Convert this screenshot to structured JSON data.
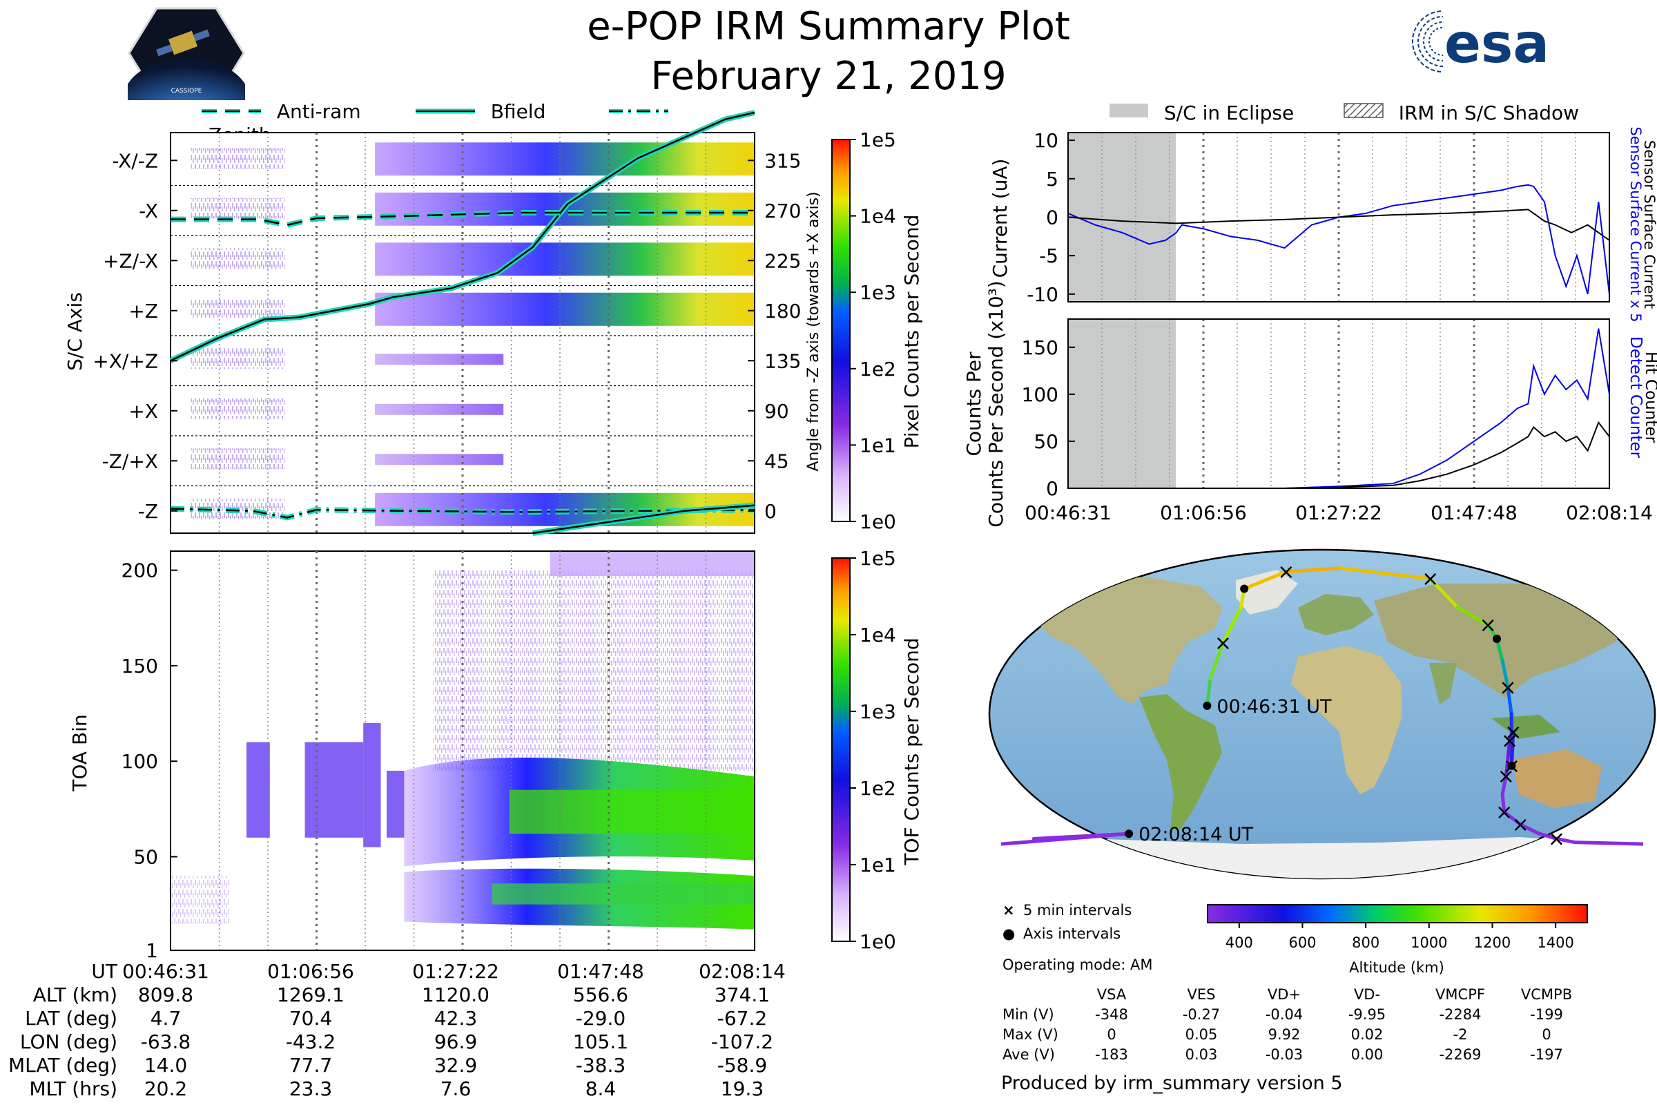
{
  "header": {
    "title": "e-POP IRM Summary Plot",
    "date": "February 21, 2019"
  },
  "logos": {
    "cassiope_text": "CASSIOPE",
    "esa_text": "esa"
  },
  "legend_top_left": {
    "items": [
      "Anti-ram",
      "Bfield",
      "Zenith"
    ]
  },
  "legend_top_right": {
    "items": [
      "S/C in Eclipse",
      "IRM in S/C Shadow"
    ]
  },
  "colors": {
    "trace_cyan": "#1ad6b8",
    "blue_line": "#0000ee",
    "eclipse_gray": "#c8cbca",
    "ocean": "#7fb2d9",
    "land": "#c9c096"
  },
  "time_axis": {
    "ticks": [
      "00:46:31",
      "01:06:56",
      "01:27:22",
      "01:47:48",
      "02:08:14"
    ]
  },
  "chart_data": [
    {
      "type": "heatmap",
      "name": "pixel_counts",
      "ylabel_left": "S/C Axis",
      "ylabel_right": "Angle from -Z axis (towards +X axis)",
      "y_categories": [
        "-X/-Z",
        "-X",
        "+Z/-X",
        "+Z",
        "+X/+Z",
        "+X",
        "-Z/+X",
        "-Z"
      ],
      "y_angles": [
        "315",
        "270",
        "225",
        "180",
        "135",
        "90",
        "45",
        "0"
      ],
      "colorbar_label": "Pixel Counts per Second",
      "colorbar_ticks": [
        "1e5",
        "1e4",
        "1e3",
        "1e2",
        "1e1",
        "1e0"
      ],
      "series": [
        {
          "name": "Bfield",
          "x_frac": [
            0,
            0.08,
            0.16,
            0.22,
            0.34,
            0.38,
            0.48,
            0.56,
            0.62,
            0.68,
            0.8,
            0.95,
            1.0
          ],
          "angle": [
            135,
            155,
            172,
            174,
            186,
            192,
            200,
            214,
            237,
            276,
            317,
            352,
            358
          ]
        },
        {
          "name": "Anti-ram",
          "x_frac": [
            0,
            0.15,
            0.2,
            0.25,
            0.4,
            0.6,
            1.0
          ],
          "angle": [
            262,
            262,
            257,
            263,
            265,
            268,
            268
          ]
        },
        {
          "name": "Zenith",
          "x_frac": [
            0,
            0.14,
            0.2,
            0.25,
            0.4,
            0.6,
            1.0
          ],
          "angle": [
            2,
            0,
            -6,
            1,
            0,
            -1,
            1
          ]
        }
      ]
    },
    {
      "type": "heatmap",
      "name": "tof_counts",
      "ylabel": "TOA Bin",
      "y_ticks": [
        "1",
        "50",
        "100",
        "150",
        "200"
      ],
      "ylim": [
        1,
        210
      ],
      "colorbar_label": "TOF Counts per Second",
      "colorbar_ticks": [
        "1e5",
        "1e4",
        "1e3",
        "1e2",
        "1e1",
        "1e0"
      ]
    },
    {
      "type": "line",
      "name": "current",
      "ylabel": "Current (uA)",
      "right_labels": [
        "Sensor Surface Current x 5",
        "Sensor Surface Current"
      ],
      "y_ticks": [
        "10",
        "5",
        "0",
        "-5",
        "-10"
      ],
      "ylim": [
        -11,
        11
      ],
      "series": [
        {
          "name": "Sensor Surface Current x 5",
          "x_frac": [
            0,
            0.05,
            0.1,
            0.15,
            0.18,
            0.2,
            0.21,
            0.25,
            0.3,
            0.35,
            0.4,
            0.45,
            0.5,
            0.55,
            0.6,
            0.65,
            0.7,
            0.75,
            0.8,
            0.83,
            0.85,
            0.86,
            0.88,
            0.9,
            0.92,
            0.94,
            0.96,
            0.98,
            1.0
          ],
          "values": [
            0.5,
            -1,
            -2,
            -3.5,
            -3,
            -2,
            -1,
            -1.5,
            -2.5,
            -3,
            -4,
            -1,
            0,
            0.5,
            1.5,
            2,
            2.5,
            3,
            3.5,
            4,
            4.2,
            4,
            2,
            -5,
            -9,
            -5,
            -10,
            2,
            -10
          ]
        },
        {
          "name": "Sensor Surface Current",
          "x_frac": [
            0,
            0.1,
            0.2,
            0.3,
            0.4,
            0.5,
            0.6,
            0.7,
            0.8,
            0.85,
            0.88,
            0.9,
            0.93,
            0.96,
            1.0
          ],
          "values": [
            0,
            -0.5,
            -0.8,
            -0.5,
            -0.3,
            0,
            0.3,
            0.5,
            0.8,
            1,
            -0.5,
            -1,
            -2,
            -1,
            -3
          ]
        }
      ]
    },
    {
      "type": "line",
      "name": "counts",
      "ylabel": "Counts Per Second (x10³)",
      "right_labels": [
        "Detect Counter",
        "Hit Counter"
      ],
      "y_ticks": [
        "150",
        "100",
        "50",
        "0"
      ],
      "ylim": [
        0,
        180
      ],
      "series": [
        {
          "name": "Detect Counter",
          "x_frac": [
            0,
            0.4,
            0.5,
            0.6,
            0.65,
            0.7,
            0.75,
            0.8,
            0.83,
            0.85,
            0.86,
            0.88,
            0.9,
            0.92,
            0.94,
            0.96,
            0.98,
            1.0
          ],
          "values": [
            0,
            0,
            2,
            5,
            15,
            30,
            50,
            70,
            85,
            90,
            130,
            100,
            120,
            105,
            115,
            95,
            170,
            100
          ]
        },
        {
          "name": "Hit Counter",
          "x_frac": [
            0,
            0.4,
            0.5,
            0.6,
            0.65,
            0.7,
            0.75,
            0.8,
            0.83,
            0.85,
            0.86,
            0.88,
            0.9,
            0.92,
            0.94,
            0.96,
            0.98,
            1.0
          ],
          "values": [
            0,
            0,
            1,
            3,
            8,
            15,
            25,
            38,
            48,
            55,
            65,
            55,
            60,
            50,
            55,
            40,
            70,
            55
          ]
        }
      ]
    },
    {
      "type": "scatter",
      "name": "orbit_map",
      "start_label": "00:46:31 UT",
      "end_label": "02:08:14 UT",
      "lon": [
        -63.8,
        -62,
        -55,
        -45,
        -43.2,
        -20,
        10,
        60,
        75,
        92,
        96.9,
        100,
        103,
        105,
        105.1,
        106,
        104,
        103,
        102,
        100,
        101,
        110,
        120,
        130,
        140,
        -160,
        -107.2
      ],
      "lat": [
        4.7,
        20,
        40,
        60,
        70.4,
        80,
        82,
        76,
        60,
        50,
        42.3,
        30,
        15,
        0,
        -29,
        -10,
        -15,
        -25,
        -35,
        -45,
        -55,
        -62,
        -67,
        -70,
        -72,
        -70,
        -67.2
      ]
    }
  ],
  "map_legend": {
    "five_min": "5 min intervals",
    "axis": "Axis intervals",
    "mode": "Operating mode: AM",
    "altitude_label": "Altitude (km)",
    "altitude_ticks": [
      "400",
      "600",
      "800",
      "1000",
      "1200",
      "1400"
    ]
  },
  "ephemeris": {
    "rows": [
      {
        "label": "UT",
        "values": [
          "00:46:31",
          "01:06:56",
          "01:27:22",
          "01:47:48",
          "02:08:14"
        ]
      },
      {
        "label": "ALT (km)",
        "values": [
          "809.8",
          "1269.1",
          "1120.0",
          "556.6",
          "374.1"
        ]
      },
      {
        "label": "LAT (deg)",
        "values": [
          "4.7",
          "70.4",
          "42.3",
          "-29.0",
          "-67.2"
        ]
      },
      {
        "label": "LON (deg)",
        "values": [
          "-63.8",
          "-43.2",
          "96.9",
          "105.1",
          "-107.2"
        ]
      },
      {
        "label": "MLAT (deg)",
        "values": [
          "14.0",
          "77.7",
          "32.9",
          "-38.3",
          "-58.9"
        ]
      },
      {
        "label": "MLT (hrs)",
        "values": [
          "20.2",
          "23.3",
          "7.6",
          "8.4",
          "19.3"
        ]
      }
    ]
  },
  "voltages": {
    "columns": [
      "VSA",
      "VES",
      "VD+",
      "VD-",
      "VMCPF",
      "VCMPB"
    ],
    "rows": [
      {
        "label": "Min (V)",
        "values": [
          "-348",
          "-0.27",
          "-0.04",
          "-9.95",
          "-2284",
          "-199"
        ]
      },
      {
        "label": "Max (V)",
        "values": [
          "0",
          "0.05",
          "9.92",
          "0.02",
          "-2",
          "0"
        ]
      },
      {
        "label": "Ave (V)",
        "values": [
          "-183",
          "0.03",
          "-0.03",
          "0.00",
          "-2269",
          "-197"
        ]
      }
    ]
  },
  "footer": {
    "produced_by": "Produced by irm_summary version 5"
  }
}
